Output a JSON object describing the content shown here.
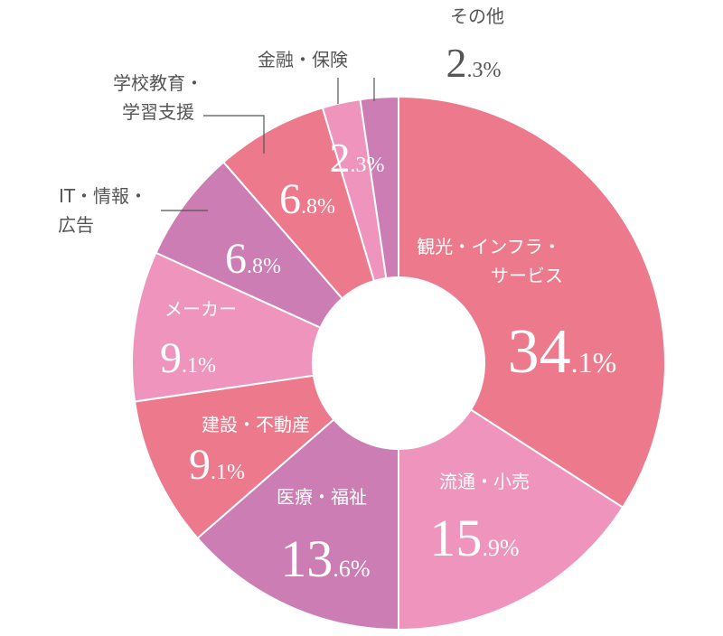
{
  "chart_data": {
    "type": "pie",
    "donut": true,
    "categories": [
      "観光・インフラ・サービス",
      "流通・小売",
      "医療・福祉",
      "建設・不動産",
      "メーカー",
      "IT・情報・広告",
      "学校教育・学習支援",
      "金融・保険",
      "その他"
    ],
    "label_lines": [
      [
        "観光・インフラ・",
        "サービス"
      ],
      [
        "流通・小売"
      ],
      [
        "医療・福祉"
      ],
      [
        "建設・不動産"
      ],
      [
        "メーカー"
      ],
      [
        "IT・情報・",
        "広告"
      ],
      [
        "学校教育・",
        "学習支援"
      ],
      [
        "金融・保険"
      ],
      [
        "その他"
      ]
    ],
    "values": [
      34.1,
      15.9,
      13.6,
      9.1,
      9.1,
      6.8,
      6.8,
      2.3,
      2.3
    ],
    "value_int": [
      "34",
      "15",
      "13",
      "9",
      "9",
      "6",
      "6",
      "2",
      "2"
    ],
    "value_dec": [
      ".1",
      ".9",
      ".6",
      ".1",
      ".1",
      ".8",
      ".8",
      ".3",
      ".3"
    ],
    "unit": "%",
    "colors": [
      "#ec7a8c",
      "#ef95bd",
      "#cc7db3",
      "#ec7a8c",
      "#ef95bd",
      "#cc7db3",
      "#ec7a8c",
      "#ef95bd",
      "#cc7db3"
    ],
    "legend": "none"
  }
}
